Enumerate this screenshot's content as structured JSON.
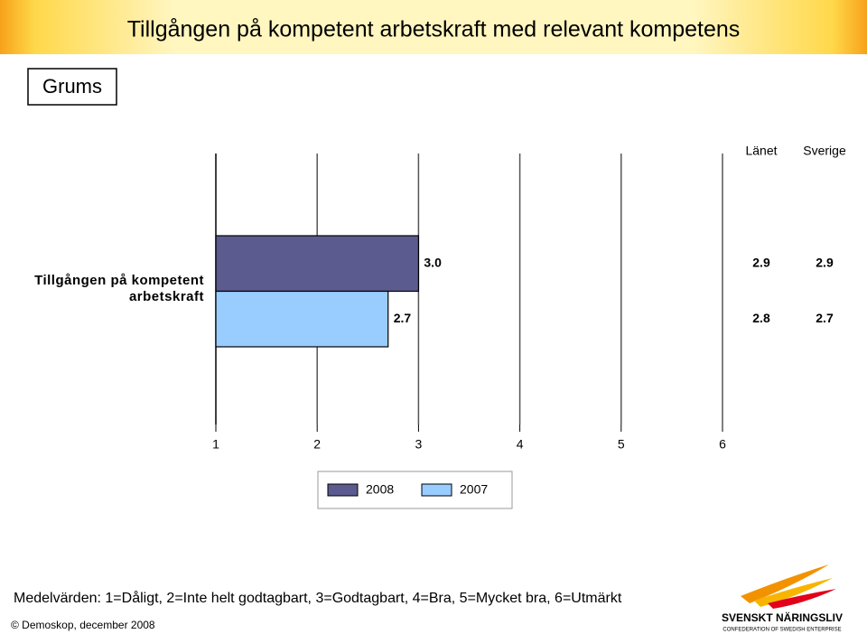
{
  "chart_data": {
    "type": "bar",
    "orientation": "horizontal",
    "title": "Tillgången på kompetent arbetskraft med relevant kompetens",
    "subtitle": "Grums",
    "categories": [
      "Tillgången på kompetent arbetskraft"
    ],
    "series": [
      {
        "name": "2008",
        "color": "#5b5b8f",
        "values": [
          3.0
        ],
        "value_labels": [
          "3.0"
        ]
      },
      {
        "name": "2007",
        "color": "#99ccff",
        "values": [
          2.7
        ],
        "value_labels": [
          "2.7"
        ]
      }
    ],
    "xlim": [
      1,
      6
    ],
    "xticks": [
      1,
      2,
      3,
      4,
      5,
      6
    ],
    "grid": true,
    "comparison_columns": [
      {
        "name": "Länet",
        "values": [
          2.9,
          2.8
        ],
        "value_labels": [
          "2.9",
          "2.8"
        ]
      },
      {
        "name": "Sverige",
        "values": [
          2.9,
          2.7
        ],
        "value_labels": [
          "2.9",
          "2.7"
        ]
      }
    ],
    "footnote": "Medelvärden: 1=Dåligt, 2=Inte helt godtagbart, 3=Godtagbart, 4=Bra, 5=Mycket bra, 6=Utmärkt",
    "source": "© Demoskop, december 2008",
    "logo": {
      "name": "SVENSKT NÄRINGSLIV",
      "tagline": "CONFEDERATION OF SWEDISH ENTERPRISE"
    }
  }
}
